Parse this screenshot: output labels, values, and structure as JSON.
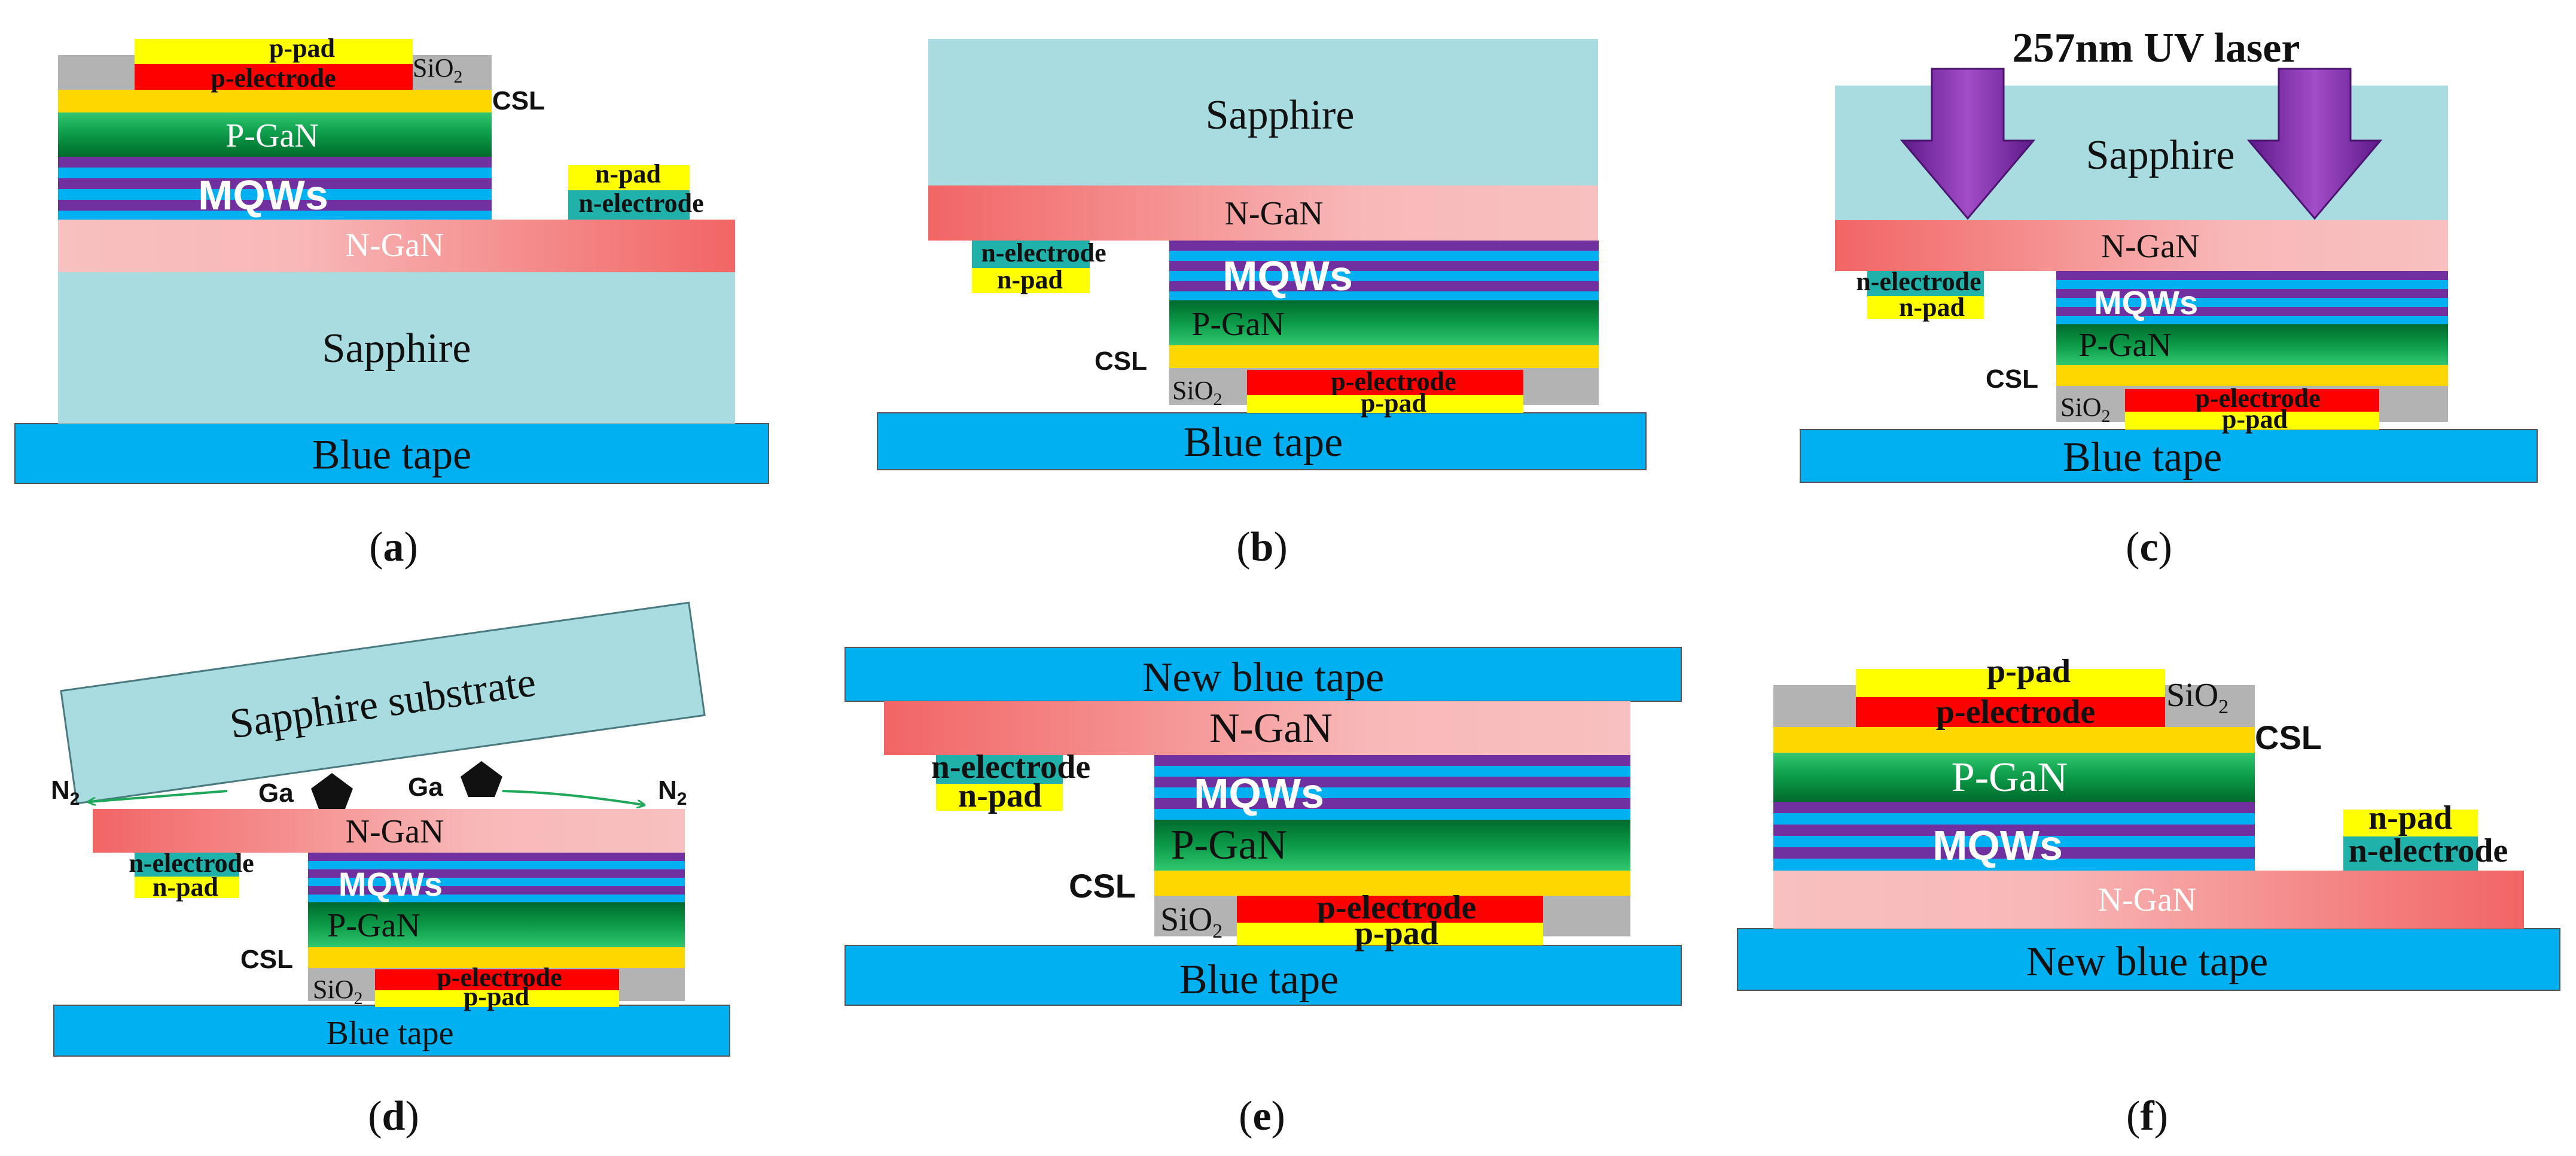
{
  "figure": {
    "panels": [
      {
        "caption_letter": "a",
        "layers": {
          "p_pad": "p-pad",
          "p_electrode": "p-electrode",
          "sio2": "SiO",
          "sio2_sub": "2",
          "csl": "CSL",
          "p_gan": "P-GaN",
          "mqws": "MQWs",
          "n_pad": "n-pad",
          "n_electrode": "n-electrode",
          "n_gan": "N-GaN",
          "sapphire": "Sapphire",
          "tape": "Blue tape"
        }
      },
      {
        "caption_letter": "b",
        "layers": {
          "sapphire": "Sapphire",
          "n_gan": "N-GaN",
          "n_electrode": "n-electrode",
          "n_pad": "n-pad",
          "mqws": "MQWs",
          "p_gan": "P-GaN",
          "csl": "CSL",
          "sio2": "SiO",
          "sio2_sub": "2",
          "p_electrode": "p-electrode",
          "p_pad": "p-pad",
          "tape": "Blue tape"
        }
      },
      {
        "caption_letter": "c",
        "laser_label": "257nm UV laser",
        "layers": {
          "sapphire": "Sapphire",
          "n_gan": "N-GaN",
          "n_electrode": "n-electrode",
          "n_pad": "n-pad",
          "mqws": "MQWs",
          "p_gan": "P-GaN",
          "csl": "CSL",
          "sio2": "SiO",
          "sio2_sub": "2",
          "p_electrode": "p-electrode",
          "p_pad": "p-pad",
          "tape": "Blue tape"
        }
      },
      {
        "caption_letter": "d",
        "substrate_label": "Sapphire substrate",
        "gas_n": "N",
        "gas_n_sub": "2",
        "ga_label": "Ga",
        "layers": {
          "n_gan": "N-GaN",
          "n_electrode": "n-electrode",
          "n_pad": "n-pad",
          "mqws": "MQWs",
          "p_gan": "P-GaN",
          "csl": "CSL",
          "sio2": "SiO",
          "sio2_sub": "2",
          "p_electrode": "p-electrode",
          "p_pad": "p-pad",
          "tape": "Blue tape"
        }
      },
      {
        "caption_letter": "e",
        "layers": {
          "new_tape": "New blue tape",
          "n_gan": "N-GaN",
          "n_electrode": "n-electrode",
          "n_pad": "n-pad",
          "mqws": "MQWs",
          "p_gan": "P-GaN",
          "csl": "CSL",
          "sio2": "SiO",
          "sio2_sub": "2",
          "p_electrode": "p-electrode",
          "p_pad": "p-pad",
          "tape": "Blue tape"
        }
      },
      {
        "caption_letter": "f",
        "layers": {
          "p_pad": "p-pad",
          "p_electrode": "p-electrode",
          "sio2": "SiO",
          "sio2_sub": "2",
          "csl": "CSL",
          "p_gan": "P-GaN",
          "mqws": "MQWs",
          "n_pad": "n-pad",
          "n_electrode": "n-electrode",
          "n_gan": "N-GaN",
          "tape": "New blue tape"
        }
      }
    ],
    "colors": {
      "tape": "#00b0f0",
      "sapphire": "#a8dce0",
      "n_gan_dark": "#f46f6f",
      "n_gan_light": "#f8b6b6",
      "mqw_purple": "#7030a0",
      "mqw_blue": "#00b0f0",
      "p_gan_dark": "#00803a",
      "p_gan_light": "#2ec86a",
      "csl": "#ffd700",
      "pad": "#ffff00",
      "electrode": "#ff0000",
      "sio2": "#b3b3b3",
      "n_electrode": "#20b2aa",
      "arrow": "#7b2a9e",
      "gas_arrow": "#1fa85a"
    }
  }
}
